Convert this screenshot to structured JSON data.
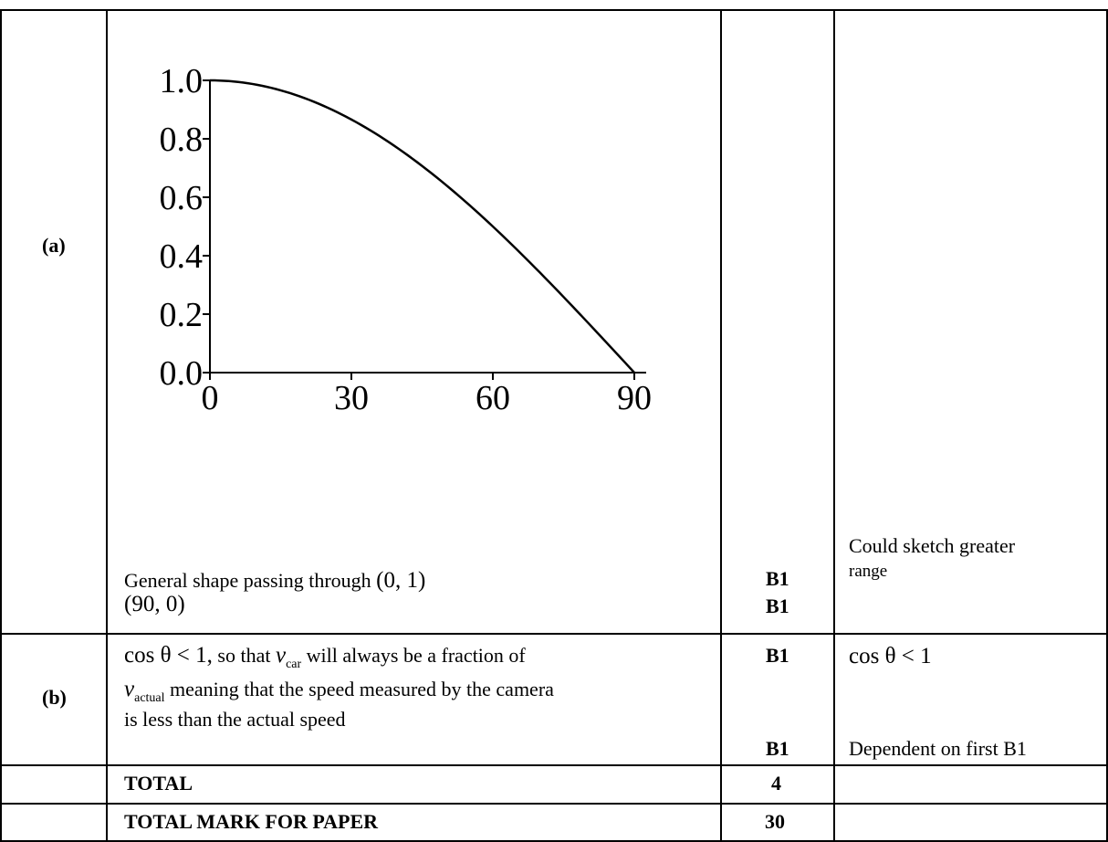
{
  "rows": {
    "a": {
      "label": "(a)",
      "desc1": "General shape passing through",
      "point1": "(0, 1)",
      "point2": "(90, 0)",
      "mark1": "B1",
      "mark2": "B1",
      "guidance_line1": "Could sketch greater",
      "guidance_line2": "range"
    },
    "b": {
      "label": "(b)",
      "line1_math": "cos θ < 1,",
      "line1_text_a": "so that",
      "v_symbol": "v",
      "sub_car": "car",
      "line1_text_b": "will always be a fraction of",
      "sub_actual": "actual",
      "line2_text": "meaning that the speed measured by the camera",
      "line3_text": "is less than the actual speed",
      "mark1": "B1",
      "mark2": "B1",
      "guidance1": "cos θ < 1",
      "guidance2": "Dependent on first B1"
    },
    "total": {
      "label": "TOTAL",
      "mark": "4"
    },
    "paper_total": {
      "label": "TOTAL MARK FOR PAPER",
      "mark": "30"
    }
  },
  "chart_data": {
    "type": "line",
    "title": "",
    "xlabel": "",
    "ylabel": "",
    "xlim": [
      0,
      92
    ],
    "ylim": [
      0,
      1.0
    ],
    "x_ticks": [
      "0",
      "30",
      "60",
      "90"
    ],
    "y_ticks": [
      "0.0",
      "0.2",
      "0.4",
      "0.6",
      "0.8",
      "1.0"
    ],
    "series": [
      {
        "x": [
          0,
          10,
          20,
          30,
          40,
          50,
          60,
          70,
          80,
          90
        ],
        "y": [
          1.0,
          0.985,
          0.94,
          0.866,
          0.766,
          0.643,
          0.5,
          0.342,
          0.174,
          0.0
        ]
      }
    ],
    "grid": false,
    "legend": "none"
  }
}
